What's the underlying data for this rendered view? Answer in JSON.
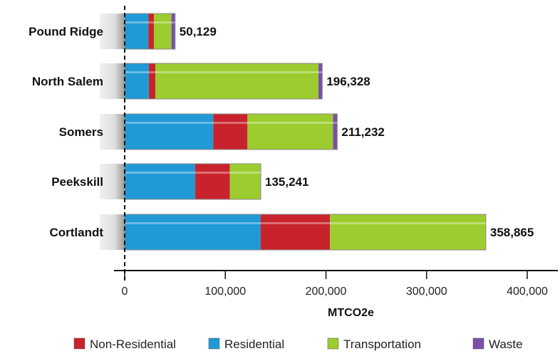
{
  "chart_data": {
    "type": "bar",
    "orientation": "horizontal",
    "stacked": true,
    "categories": [
      "Pound Ridge",
      "North Salem",
      "Somers",
      "Peekskill",
      "Cortlandt"
    ],
    "series": [
      {
        "name": "Residential",
        "color": "#1f9ad6",
        "values": [
          23500,
          24000,
          88000,
          70000,
          135000
        ]
      },
      {
        "name": "Non-Residential",
        "color": "#c8232c",
        "values": [
          5500,
          6500,
          34000,
          34500,
          69000
        ]
      },
      {
        "name": "Transportation",
        "color": "#9ccc2e",
        "values": [
          17500,
          162000,
          85000,
          30741,
          154865
        ]
      },
      {
        "name": "Waste",
        "color": "#7b4fa6",
        "values": [
          3629,
          3828,
          4232,
          0,
          0
        ]
      }
    ],
    "totals": [
      "50,129",
      "196,328",
      "211,232",
      "135,241",
      "358,865"
    ],
    "xlabel": "MTCO2e",
    "xlim": [
      0,
      420000
    ],
    "x_ticks": [
      0,
      100000,
      200000,
      300000,
      400000
    ],
    "x_tick_labels": [
      "0",
      "100,000",
      "200,000",
      "300,000",
      "400,000"
    ],
    "legend_position": "bottom",
    "legend_order": [
      "Non-Residential",
      "Residential",
      "Transportation",
      "Waste"
    ],
    "grid": false
  }
}
